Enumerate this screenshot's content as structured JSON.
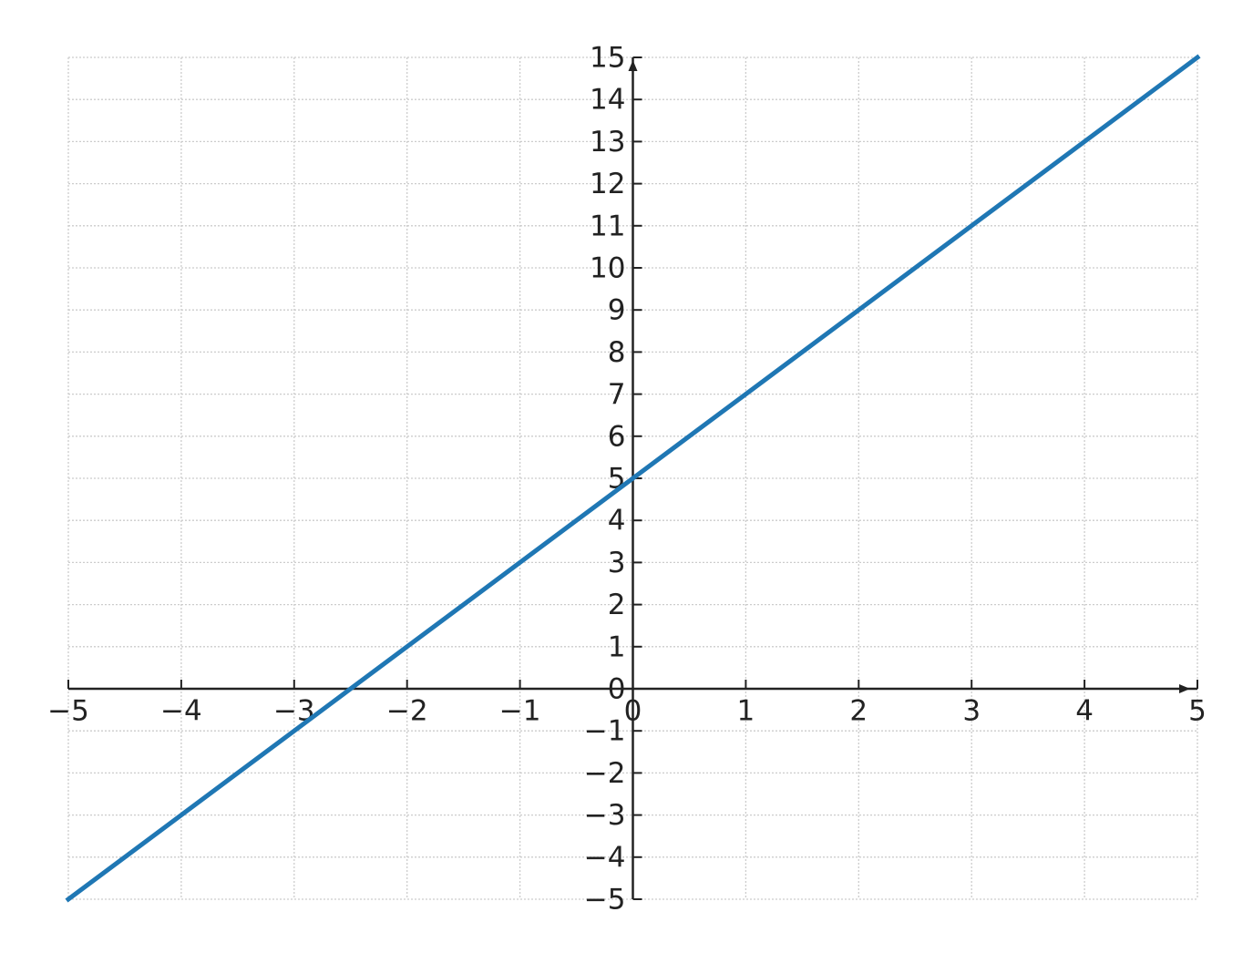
{
  "chart_data": {
    "type": "line",
    "x": [
      -5,
      -4,
      -3,
      -2,
      -1,
      0,
      1,
      2,
      3,
      4,
      5
    ],
    "values": [
      -5,
      -3,
      -1,
      1,
      3,
      5,
      7,
      9,
      11,
      13,
      15
    ],
    "color": "#1f77b4",
    "xlim": [
      -5,
      5
    ],
    "ylim": [
      -5,
      15
    ],
    "xticks": [
      {
        "value": -5,
        "label": "−5"
      },
      {
        "value": -4,
        "label": "−4"
      },
      {
        "value": -3,
        "label": "−3"
      },
      {
        "value": -2,
        "label": "−2"
      },
      {
        "value": -1,
        "label": "−1"
      },
      0,
      1,
      2,
      3,
      4,
      5
    ],
    "yticks": [
      {
        "value": -5,
        "label": "−5"
      },
      {
        "value": -4,
        "label": "−4"
      },
      {
        "value": -3,
        "label": "−3"
      },
      {
        "value": -2,
        "label": "−2"
      },
      {
        "value": -1,
        "label": "−1"
      },
      0,
      1,
      2,
      3,
      4,
      5,
      6,
      7,
      8,
      9,
      10,
      11,
      12,
      13,
      14,
      15
    ],
    "grid": true
  }
}
